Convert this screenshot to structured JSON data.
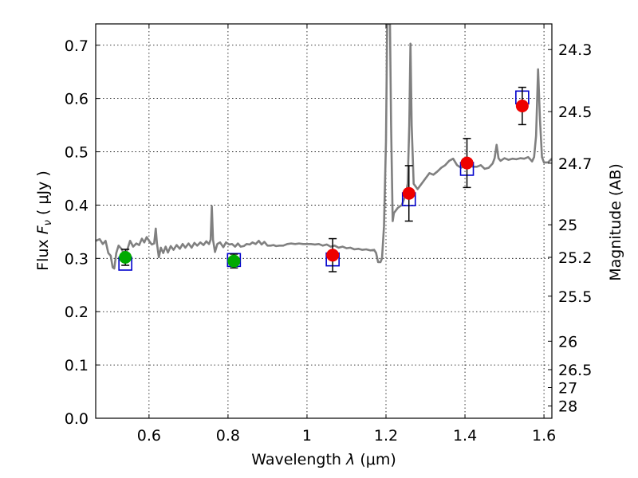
{
  "chart_data": {
    "type": "scatter",
    "title": "",
    "xlabel": "Wavelength",
    "xlabel_symbol": "λ",
    "xlabel_unit": "(μm)",
    "ylabel": "Flux",
    "ylabel_symbol": "F",
    "ylabel_sub": "ν",
    "ylabel_unit": "( μJy )",
    "y2label": "Magnitude (AB)",
    "xlim": [
      0.465,
      1.62
    ],
    "ylim": [
      0.0,
      0.74
    ],
    "grid": true,
    "x_ticks": [
      {
        "value": 0.6,
        "label": "0.6"
      },
      {
        "value": 0.8,
        "label": "0.8"
      },
      {
        "value": 1.0,
        "label": "1"
      },
      {
        "value": 1.2,
        "label": "1.2"
      },
      {
        "value": 1.4,
        "label": "1.4"
      },
      {
        "value": 1.6,
        "label": "1.6"
      }
    ],
    "y_ticks": [
      {
        "value": 0.0,
        "label": "0.0"
      },
      {
        "value": 0.1,
        "label": "0.1"
      },
      {
        "value": 0.2,
        "label": "0.2"
      },
      {
        "value": 0.3,
        "label": "0.3"
      },
      {
        "value": 0.4,
        "label": "0.4"
      },
      {
        "value": 0.5,
        "label": "0.5"
      },
      {
        "value": 0.6,
        "label": "0.6"
      },
      {
        "value": 0.7,
        "label": "0.7"
      }
    ],
    "y2_ticks": [
      {
        "mag": 24.3,
        "label": "24.3"
      },
      {
        "mag": 24.5,
        "label": "24.5"
      },
      {
        "mag": 24.7,
        "label": "24.7"
      },
      {
        "mag": 25.0,
        "label": "25"
      },
      {
        "mag": 25.2,
        "label": "25.2"
      },
      {
        "mag": 25.5,
        "label": "25.5"
      },
      {
        "mag": 26.0,
        "label": "26"
      },
      {
        "mag": 26.5,
        "label": "26.5"
      },
      {
        "mag": 27.0,
        "label": "27"
      },
      {
        "mag": 28.0,
        "label": "28"
      }
    ],
    "spectrum": {
      "name": "model-spectrum",
      "color": "#808080",
      "points": [
        [
          0.465,
          0.333
        ],
        [
          0.475,
          0.336
        ],
        [
          0.483,
          0.327
        ],
        [
          0.49,
          0.333
        ],
        [
          0.497,
          0.31
        ],
        [
          0.503,
          0.305
        ],
        [
          0.508,
          0.283
        ],
        [
          0.512,
          0.281
        ],
        [
          0.517,
          0.31
        ],
        [
          0.523,
          0.324
        ],
        [
          0.53,
          0.318
        ],
        [
          0.538,
          0.307
        ],
        [
          0.545,
          0.316
        ],
        [
          0.552,
          0.333
        ],
        [
          0.56,
          0.322
        ],
        [
          0.568,
          0.328
        ],
        [
          0.575,
          0.325
        ],
        [
          0.582,
          0.337
        ],
        [
          0.588,
          0.33
        ],
        [
          0.594,
          0.34
        ],
        [
          0.6,
          0.333
        ],
        [
          0.607,
          0.326
        ],
        [
          0.613,
          0.328
        ],
        [
          0.617,
          0.356
        ],
        [
          0.62,
          0.328
        ],
        [
          0.625,
          0.302
        ],
        [
          0.63,
          0.32
        ],
        [
          0.636,
          0.31
        ],
        [
          0.642,
          0.322
        ],
        [
          0.648,
          0.311
        ],
        [
          0.655,
          0.323
        ],
        [
          0.662,
          0.316
        ],
        [
          0.67,
          0.325
        ],
        [
          0.678,
          0.318
        ],
        [
          0.685,
          0.327
        ],
        [
          0.692,
          0.32
        ],
        [
          0.7,
          0.328
        ],
        [
          0.708,
          0.32
        ],
        [
          0.715,
          0.329
        ],
        [
          0.722,
          0.324
        ],
        [
          0.73,
          0.33
        ],
        [
          0.738,
          0.325
        ],
        [
          0.745,
          0.332
        ],
        [
          0.752,
          0.327
        ],
        [
          0.756,
          0.335
        ],
        [
          0.759,
          0.398
        ],
        [
          0.762,
          0.335
        ],
        [
          0.767,
          0.312
        ],
        [
          0.773,
          0.327
        ],
        [
          0.78,
          0.33
        ],
        [
          0.788,
          0.321
        ],
        [
          0.795,
          0.33
        ],
        [
          0.803,
          0.326
        ],
        [
          0.81,
          0.327
        ],
        [
          0.818,
          0.322
        ],
        [
          0.825,
          0.328
        ],
        [
          0.832,
          0.322
        ],
        [
          0.84,
          0.323
        ],
        [
          0.847,
          0.327
        ],
        [
          0.855,
          0.326
        ],
        [
          0.862,
          0.33
        ],
        [
          0.87,
          0.327
        ],
        [
          0.878,
          0.333
        ],
        [
          0.885,
          0.326
        ],
        [
          0.892,
          0.331
        ],
        [
          0.9,
          0.324
        ],
        [
          0.908,
          0.324
        ],
        [
          0.915,
          0.325
        ],
        [
          0.922,
          0.323
        ],
        [
          0.93,
          0.324
        ],
        [
          0.94,
          0.324
        ],
        [
          0.95,
          0.327
        ],
        [
          0.96,
          0.328
        ],
        [
          0.97,
          0.327
        ],
        [
          0.98,
          0.328
        ],
        [
          0.99,
          0.327
        ],
        [
          1.0,
          0.327
        ],
        [
          1.01,
          0.327
        ],
        [
          1.02,
          0.326
        ],
        [
          1.03,
          0.327
        ],
        [
          1.04,
          0.324
        ],
        [
          1.05,
          0.326
        ],
        [
          1.06,
          0.322
        ],
        [
          1.07,
          0.324
        ],
        [
          1.08,
          0.32
        ],
        [
          1.09,
          0.322
        ],
        [
          1.1,
          0.319
        ],
        [
          1.11,
          0.32
        ],
        [
          1.12,
          0.317
        ],
        [
          1.13,
          0.318
        ],
        [
          1.14,
          0.316
        ],
        [
          1.15,
          0.317
        ],
        [
          1.16,
          0.315
        ],
        [
          1.17,
          0.316
        ],
        [
          1.175,
          0.31
        ],
        [
          1.18,
          0.293
        ],
        [
          1.186,
          0.293
        ],
        [
          1.19,
          0.3
        ],
        [
          1.195,
          0.36
        ],
        [
          1.2,
          0.52
        ],
        [
          1.203,
          0.74
        ],
        [
          1.21,
          0.74
        ],
        [
          1.213,
          0.55
        ],
        [
          1.217,
          0.37
        ],
        [
          1.22,
          0.385
        ],
        [
          1.23,
          0.395
        ],
        [
          1.24,
          0.4
        ],
        [
          1.25,
          0.42
        ],
        [
          1.255,
          0.44
        ],
        [
          1.259,
          0.55
        ],
        [
          1.262,
          0.703
        ],
        [
          1.265,
          0.55
        ],
        [
          1.27,
          0.44
        ],
        [
          1.28,
          0.43
        ],
        [
          1.29,
          0.44
        ],
        [
          1.3,
          0.45
        ],
        [
          1.31,
          0.46
        ],
        [
          1.32,
          0.457
        ],
        [
          1.33,
          0.463
        ],
        [
          1.34,
          0.47
        ],
        [
          1.35,
          0.475
        ],
        [
          1.36,
          0.483
        ],
        [
          1.37,
          0.487
        ],
        [
          1.38,
          0.475
        ],
        [
          1.39,
          0.47
        ],
        [
          1.4,
          0.473
        ],
        [
          1.41,
          0.477
        ],
        [
          1.42,
          0.472
        ],
        [
          1.43,
          0.472
        ],
        [
          1.44,
          0.475
        ],
        [
          1.45,
          0.468
        ],
        [
          1.46,
          0.47
        ],
        [
          1.47,
          0.478
        ],
        [
          1.475,
          0.488
        ],
        [
          1.48,
          0.513
        ],
        [
          1.485,
          0.488
        ],
        [
          1.49,
          0.483
        ],
        [
          1.5,
          0.488
        ],
        [
          1.51,
          0.485
        ],
        [
          1.52,
          0.487
        ],
        [
          1.53,
          0.486
        ],
        [
          1.54,
          0.488
        ],
        [
          1.55,
          0.487
        ],
        [
          1.56,
          0.49
        ],
        [
          1.565,
          0.486
        ],
        [
          1.57,
          0.482
        ],
        [
          1.575,
          0.49
        ],
        [
          1.58,
          0.53
        ],
        [
          1.585,
          0.655
        ],
        [
          1.59,
          0.56
        ],
        [
          1.595,
          0.49
        ],
        [
          1.6,
          0.48
        ],
        [
          1.61,
          0.48
        ],
        [
          1.62,
          0.487
        ]
      ]
    },
    "series": [
      {
        "name": "model-magnitudes",
        "marker": "open-square",
        "color": "#0000cc",
        "points": [
          {
            "x": 0.54,
            "y": 0.29
          },
          {
            "x": 0.815,
            "y": 0.297
          },
          {
            "x": 1.065,
            "y": 0.298
          },
          {
            "x": 1.258,
            "y": 0.411
          },
          {
            "x": 1.405,
            "y": 0.468
          },
          {
            "x": 1.545,
            "y": 0.602
          }
        ]
      },
      {
        "name": "observed-optical",
        "marker": "filled-circle",
        "color": "#00aa00",
        "points": [
          {
            "x": 0.54,
            "y": 0.302,
            "yerr": 0.015
          },
          {
            "x": 0.815,
            "y": 0.295,
            "yerr": 0.013
          }
        ]
      },
      {
        "name": "observed-nir",
        "marker": "filled-circle",
        "color": "#ee0000",
        "points": [
          {
            "x": 1.065,
            "y": 0.306,
            "yerr": 0.031
          },
          {
            "x": 1.258,
            "y": 0.422,
            "yerr": 0.052
          },
          {
            "x": 1.405,
            "y": 0.479,
            "yerr": 0.046
          },
          {
            "x": 1.545,
            "y": 0.586,
            "yerr": 0.035
          }
        ]
      }
    ]
  }
}
